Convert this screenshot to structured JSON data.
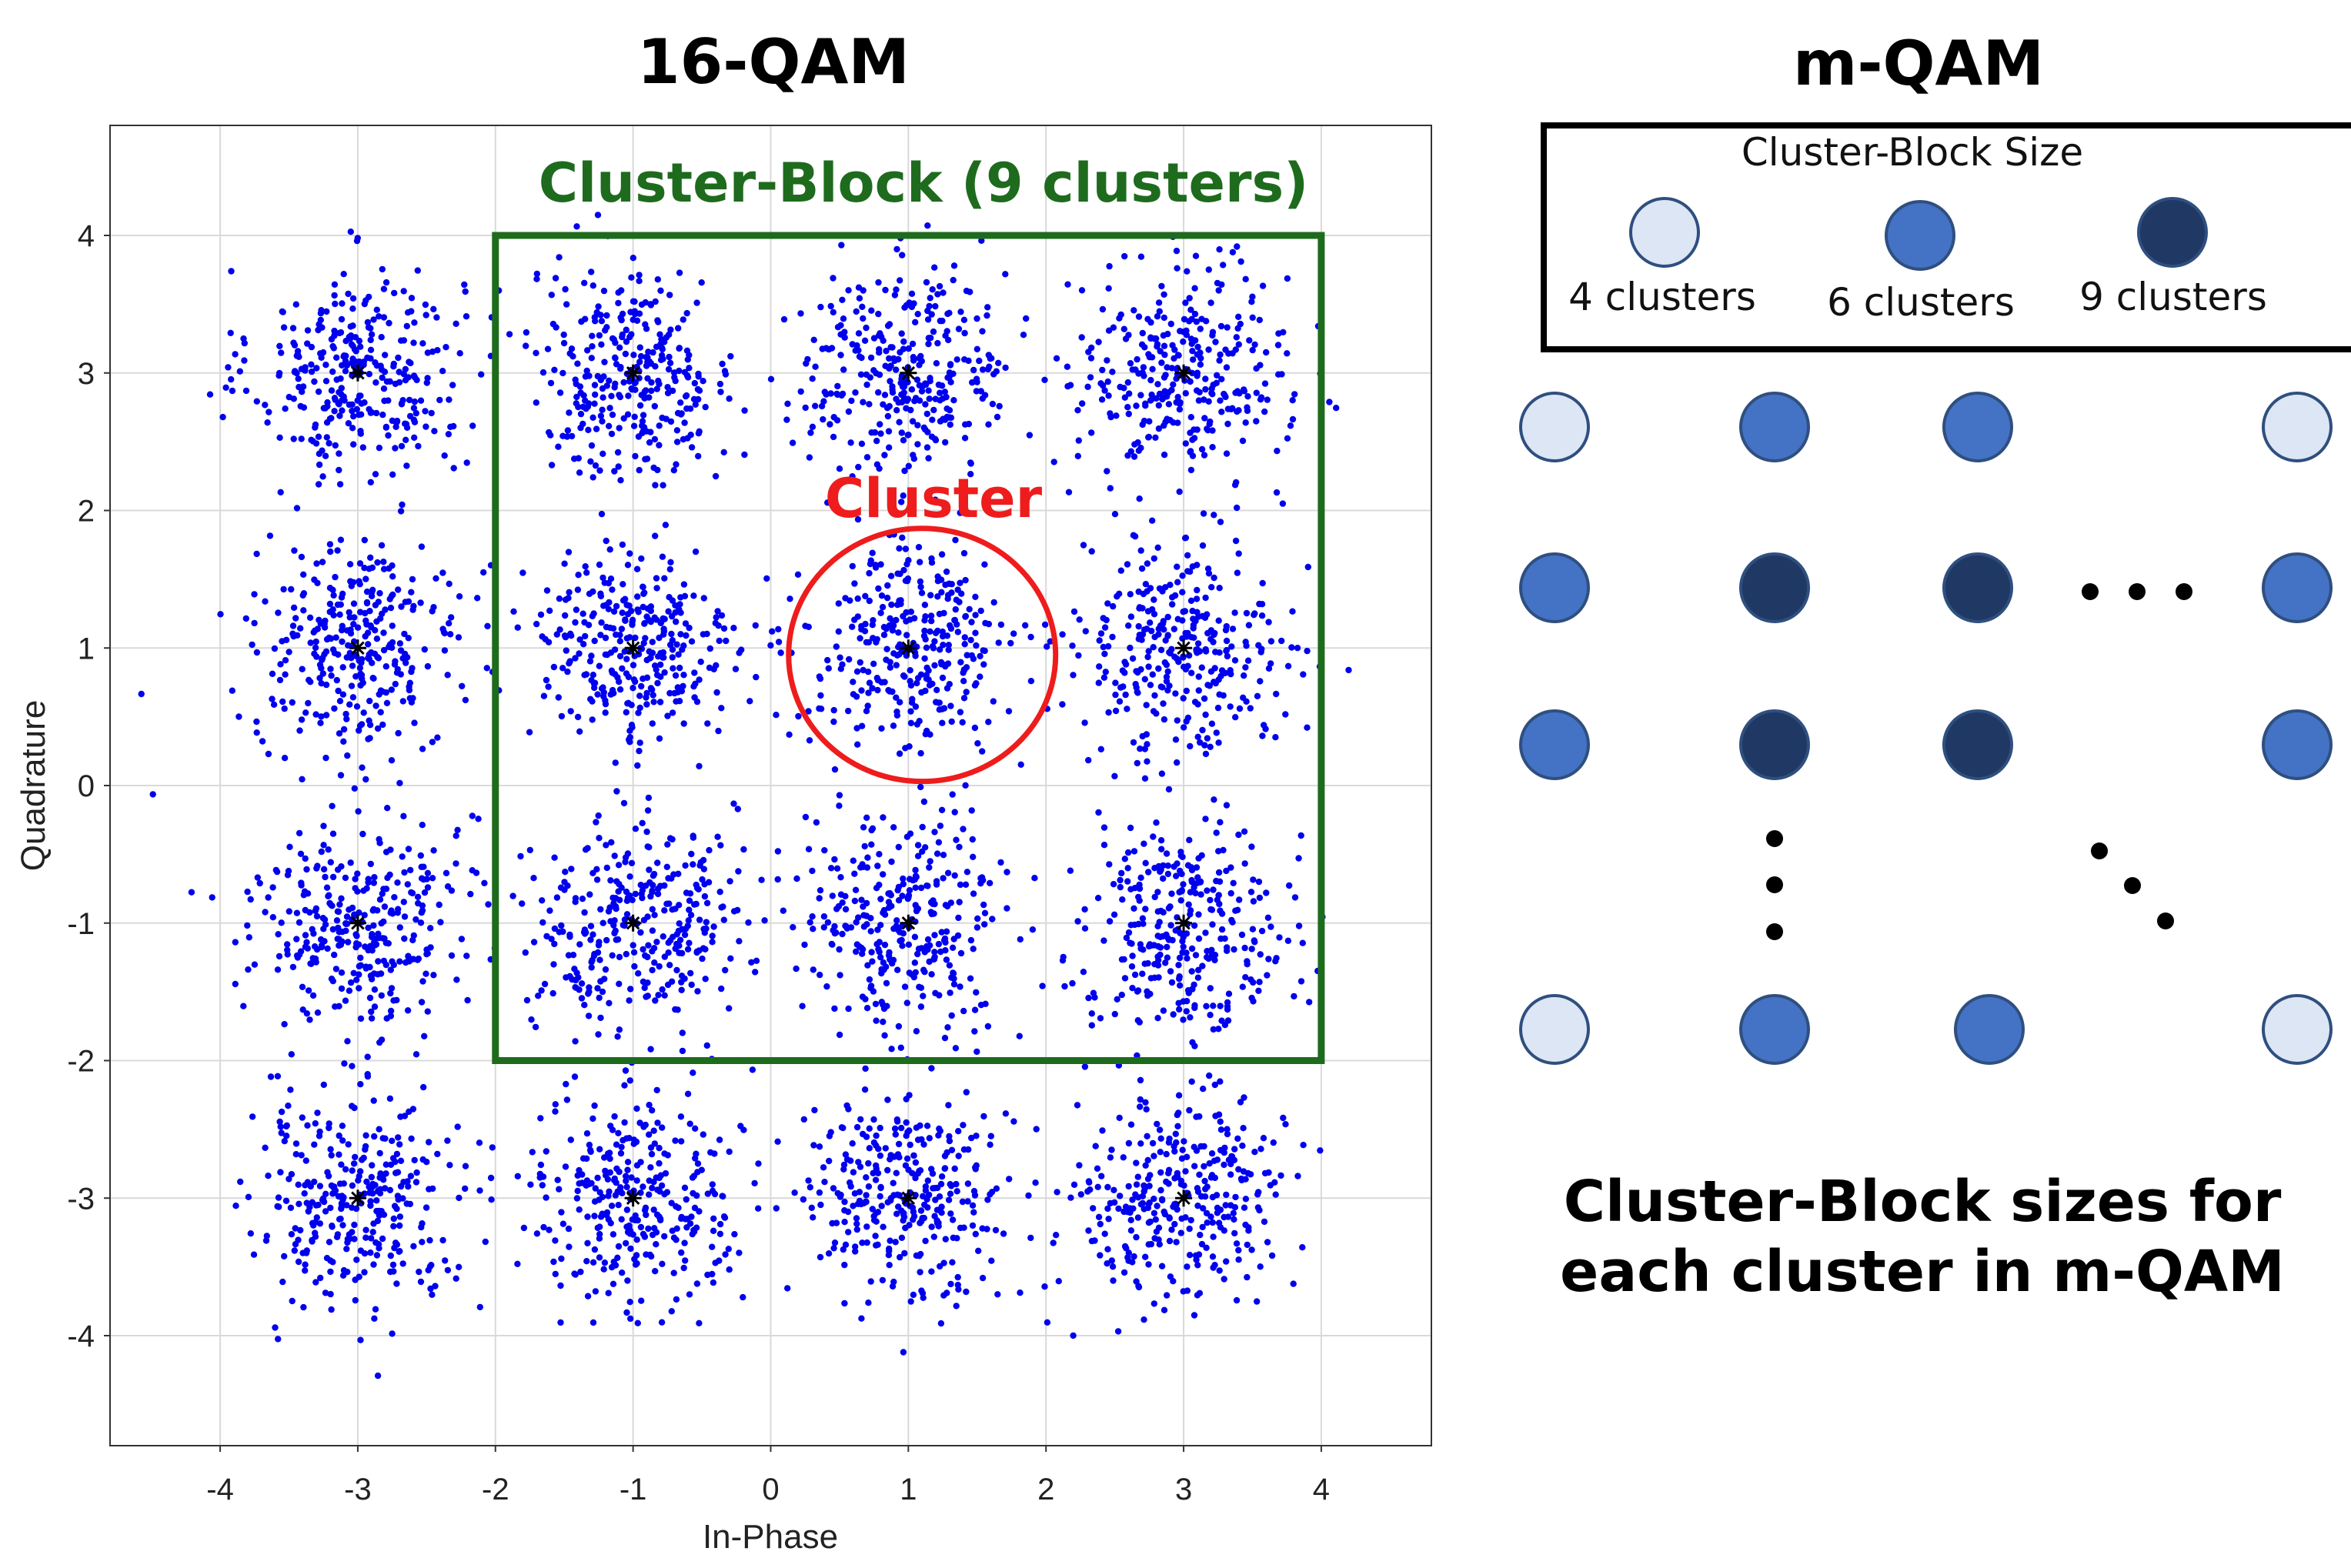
{
  "left_panel": {
    "title": "16-QAM",
    "chart_data": {
      "type": "scatter",
      "title": "16-QAM",
      "xlabel": "In-Phase",
      "ylabel": "Quadrature",
      "xlim": [
        -4.8,
        4.8
      ],
      "ylim": [
        -4.8,
        4.8
      ],
      "grid": true,
      "x_ticks": [
        -4,
        -3,
        -2,
        -1,
        0,
        1,
        2,
        3,
        4
      ],
      "y_ticks": [
        -4,
        -3,
        -2,
        -1,
        0,
        1,
        2,
        3,
        4
      ],
      "x_tick_labels": [
        "-4",
        "-3",
        "-2",
        "-1",
        "0",
        "1",
        "2",
        "3",
        "4"
      ],
      "y_tick_labels": [
        "-4",
        "-3",
        "-2",
        "-1",
        "0",
        "1",
        "2",
        "3",
        "4"
      ],
      "constellation_points": [
        {
          "x": -3,
          "y": 3
        },
        {
          "x": -1,
          "y": 3
        },
        {
          "x": 1,
          "y": 3
        },
        {
          "x": 3,
          "y": 3
        },
        {
          "x": -3,
          "y": 1
        },
        {
          "x": -1,
          "y": 1
        },
        {
          "x": 1,
          "y": 1
        },
        {
          "x": 3,
          "y": 1
        },
        {
          "x": -3,
          "y": -1
        },
        {
          "x": -1,
          "y": -1
        },
        {
          "x": 1,
          "y": -1
        },
        {
          "x": 3,
          "y": -1
        },
        {
          "x": -3,
          "y": -3
        },
        {
          "x": -1,
          "y": -3
        },
        {
          "x": 1,
          "y": -3
        },
        {
          "x": 3,
          "y": -3
        }
      ],
      "noise_std": 0.38,
      "samples_per_cluster": 320,
      "sample_color": "#0000ee",
      "marker_color": "#000000",
      "annotations": {
        "cluster_block": {
          "label": "Cluster-Block (9 clusters)",
          "x_range": [
            -2,
            4
          ],
          "y_range": [
            -2,
            4
          ],
          "color": "#1e6b1e"
        },
        "cluster": {
          "label": "Cluster",
          "center": {
            "x": 1.1,
            "y": 0.95
          },
          "radius_x": 0.97,
          "radius_y": 0.92,
          "color": "#ee1c1c"
        }
      }
    }
  },
  "right_panel": {
    "title": "m-QAM",
    "legend": {
      "title": "Cluster-Block Size",
      "items": [
        {
          "label": "4 clusters",
          "color": "#dde6f4"
        },
        {
          "label": "6 clusters",
          "color": "#4472c4"
        },
        {
          "label": "9 clusters",
          "color": "#1f3864"
        }
      ]
    },
    "grid_rows": [
      [
        "4 clusters",
        "6 clusters",
        "6 clusters",
        "4 clusters"
      ],
      [
        "6 clusters",
        "9 clusters",
        "9 clusters",
        "6 clusters"
      ],
      [
        "6 clusters",
        "9 clusters",
        "9 clusters",
        "6 clusters"
      ],
      [
        "4 clusters",
        "6 clusters",
        "6 clusters",
        "4 clusters"
      ]
    ],
    "colors": {
      "4 clusters": "#dde6f4",
      "6 clusters": "#4472c4",
      "9 clusters": "#1f3864",
      "outline": "#2f4f7f"
    },
    "ellipsis_color": "#000000",
    "caption_lines": [
      "Cluster-Block sizes for",
      "each cluster in m-QAM"
    ]
  }
}
